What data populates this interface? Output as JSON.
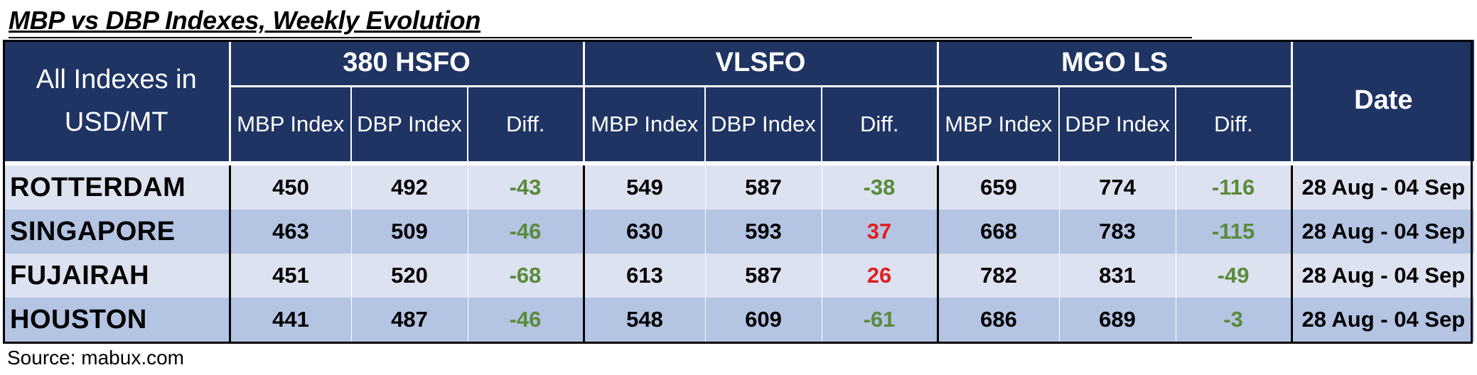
{
  "title": "MBP vs DBP Indexes, Weekly Evolution",
  "header": {
    "corner": [
      "All Indexes in",
      "USD/MT"
    ],
    "groups": [
      "380 HSFO",
      "VLSFO",
      "MGO LS"
    ],
    "sub": [
      "MBP Index",
      "DBP Index",
      "Diff."
    ],
    "date": "Date"
  },
  "rows": [
    {
      "port": "ROTTERDAM",
      "hsfo": [
        "450",
        "492",
        "-43"
      ],
      "vlsfo": [
        "549",
        "587",
        "-38"
      ],
      "mgo": [
        "659",
        "774",
        "-116"
      ],
      "date": "28 Aug - 04 Sep"
    },
    {
      "port": "SINGAPORE",
      "hsfo": [
        "463",
        "509",
        "-46"
      ],
      "vlsfo": [
        "630",
        "593",
        "37"
      ],
      "mgo": [
        "668",
        "783",
        "-115"
      ],
      "date": "28 Aug - 04 Sep"
    },
    {
      "port": "FUJAIRAH",
      "hsfo": [
        "451",
        "520",
        "-68"
      ],
      "vlsfo": [
        "613",
        "587",
        "26"
      ],
      "mgo": [
        "782",
        "831",
        "-49"
      ],
      "date": "28 Aug - 04 Sep"
    },
    {
      "port": "HOUSTON",
      "hsfo": [
        "441",
        "487",
        "-46"
      ],
      "vlsfo": [
        "548",
        "609",
        "-61"
      ],
      "mgo": [
        "686",
        "689",
        "-3"
      ],
      "date": "28 Aug - 04 Sep"
    }
  ],
  "colors": {
    "header_bg": "#1f3463",
    "row_light": "#dce2f0",
    "row_dark": "#b4c4e2",
    "negative": "#5a8a3a",
    "positive": "#e02020"
  },
  "source": "Source: mabux.com"
}
